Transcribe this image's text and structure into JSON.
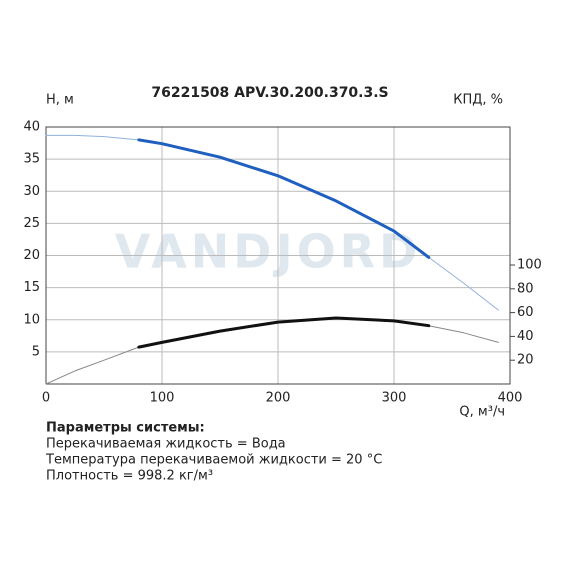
{
  "chart_data": {
    "type": "line",
    "title": "76221508 APV.30.200.370.3.S",
    "watermark": "VANDJORD",
    "ylabel": "H, м",
    "y2label": "КПД, %",
    "xlabel": "Q, м³/ч",
    "x": [
      0,
      25,
      50,
      80,
      100,
      150,
      200,
      250,
      300,
      330,
      360,
      390
    ],
    "series": [
      {
        "color": "#8fb3dc",
        "line_width": 1,
        "axis": "y",
        "values": [
          38.7,
          38.7,
          38.5,
          38.0,
          37.4,
          35.3,
          32.4,
          28.5,
          23.8,
          19.7,
          15.7,
          11.5
        ]
      },
      {
        "color": "#1f5fbf",
        "line_width": 3,
        "axis": "y",
        "values": [
          null,
          null,
          null,
          38.0,
          37.4,
          35.3,
          32.4,
          28.5,
          23.8,
          19.7,
          null,
          null
        ]
      },
      {
        "color": "#888888",
        "line_width": 1,
        "axis": "y2",
        "values": [
          0,
          11,
          20,
          31,
          35,
          44.5,
          52,
          55.5,
          53,
          49,
          43,
          35
        ]
      },
      {
        "color": "#111111",
        "line_width": 3,
        "axis": "y2",
        "values": [
          null,
          null,
          null,
          31,
          35,
          44.5,
          52,
          55.5,
          53,
          49,
          null,
          null
        ]
      }
    ],
    "xlim": [
      0,
      400
    ],
    "xticks": [
      0,
      100,
      200,
      300,
      400
    ],
    "ylim": [
      0,
      40
    ],
    "yticks": [
      5,
      10,
      15,
      20,
      25,
      30,
      35,
      40
    ],
    "y2lim": [
      0,
      216
    ],
    "y2ticks": [
      20,
      40,
      60,
      80,
      100
    ],
    "grid": true
  },
  "params": {
    "title": "Параметры системы:",
    "lines": [
      "Перекачиваемая жидкость = Вода",
      "Температура перекачиваемой жидкости = 20 °C",
      "Плотность = 998.2 кг/м³"
    ]
  }
}
